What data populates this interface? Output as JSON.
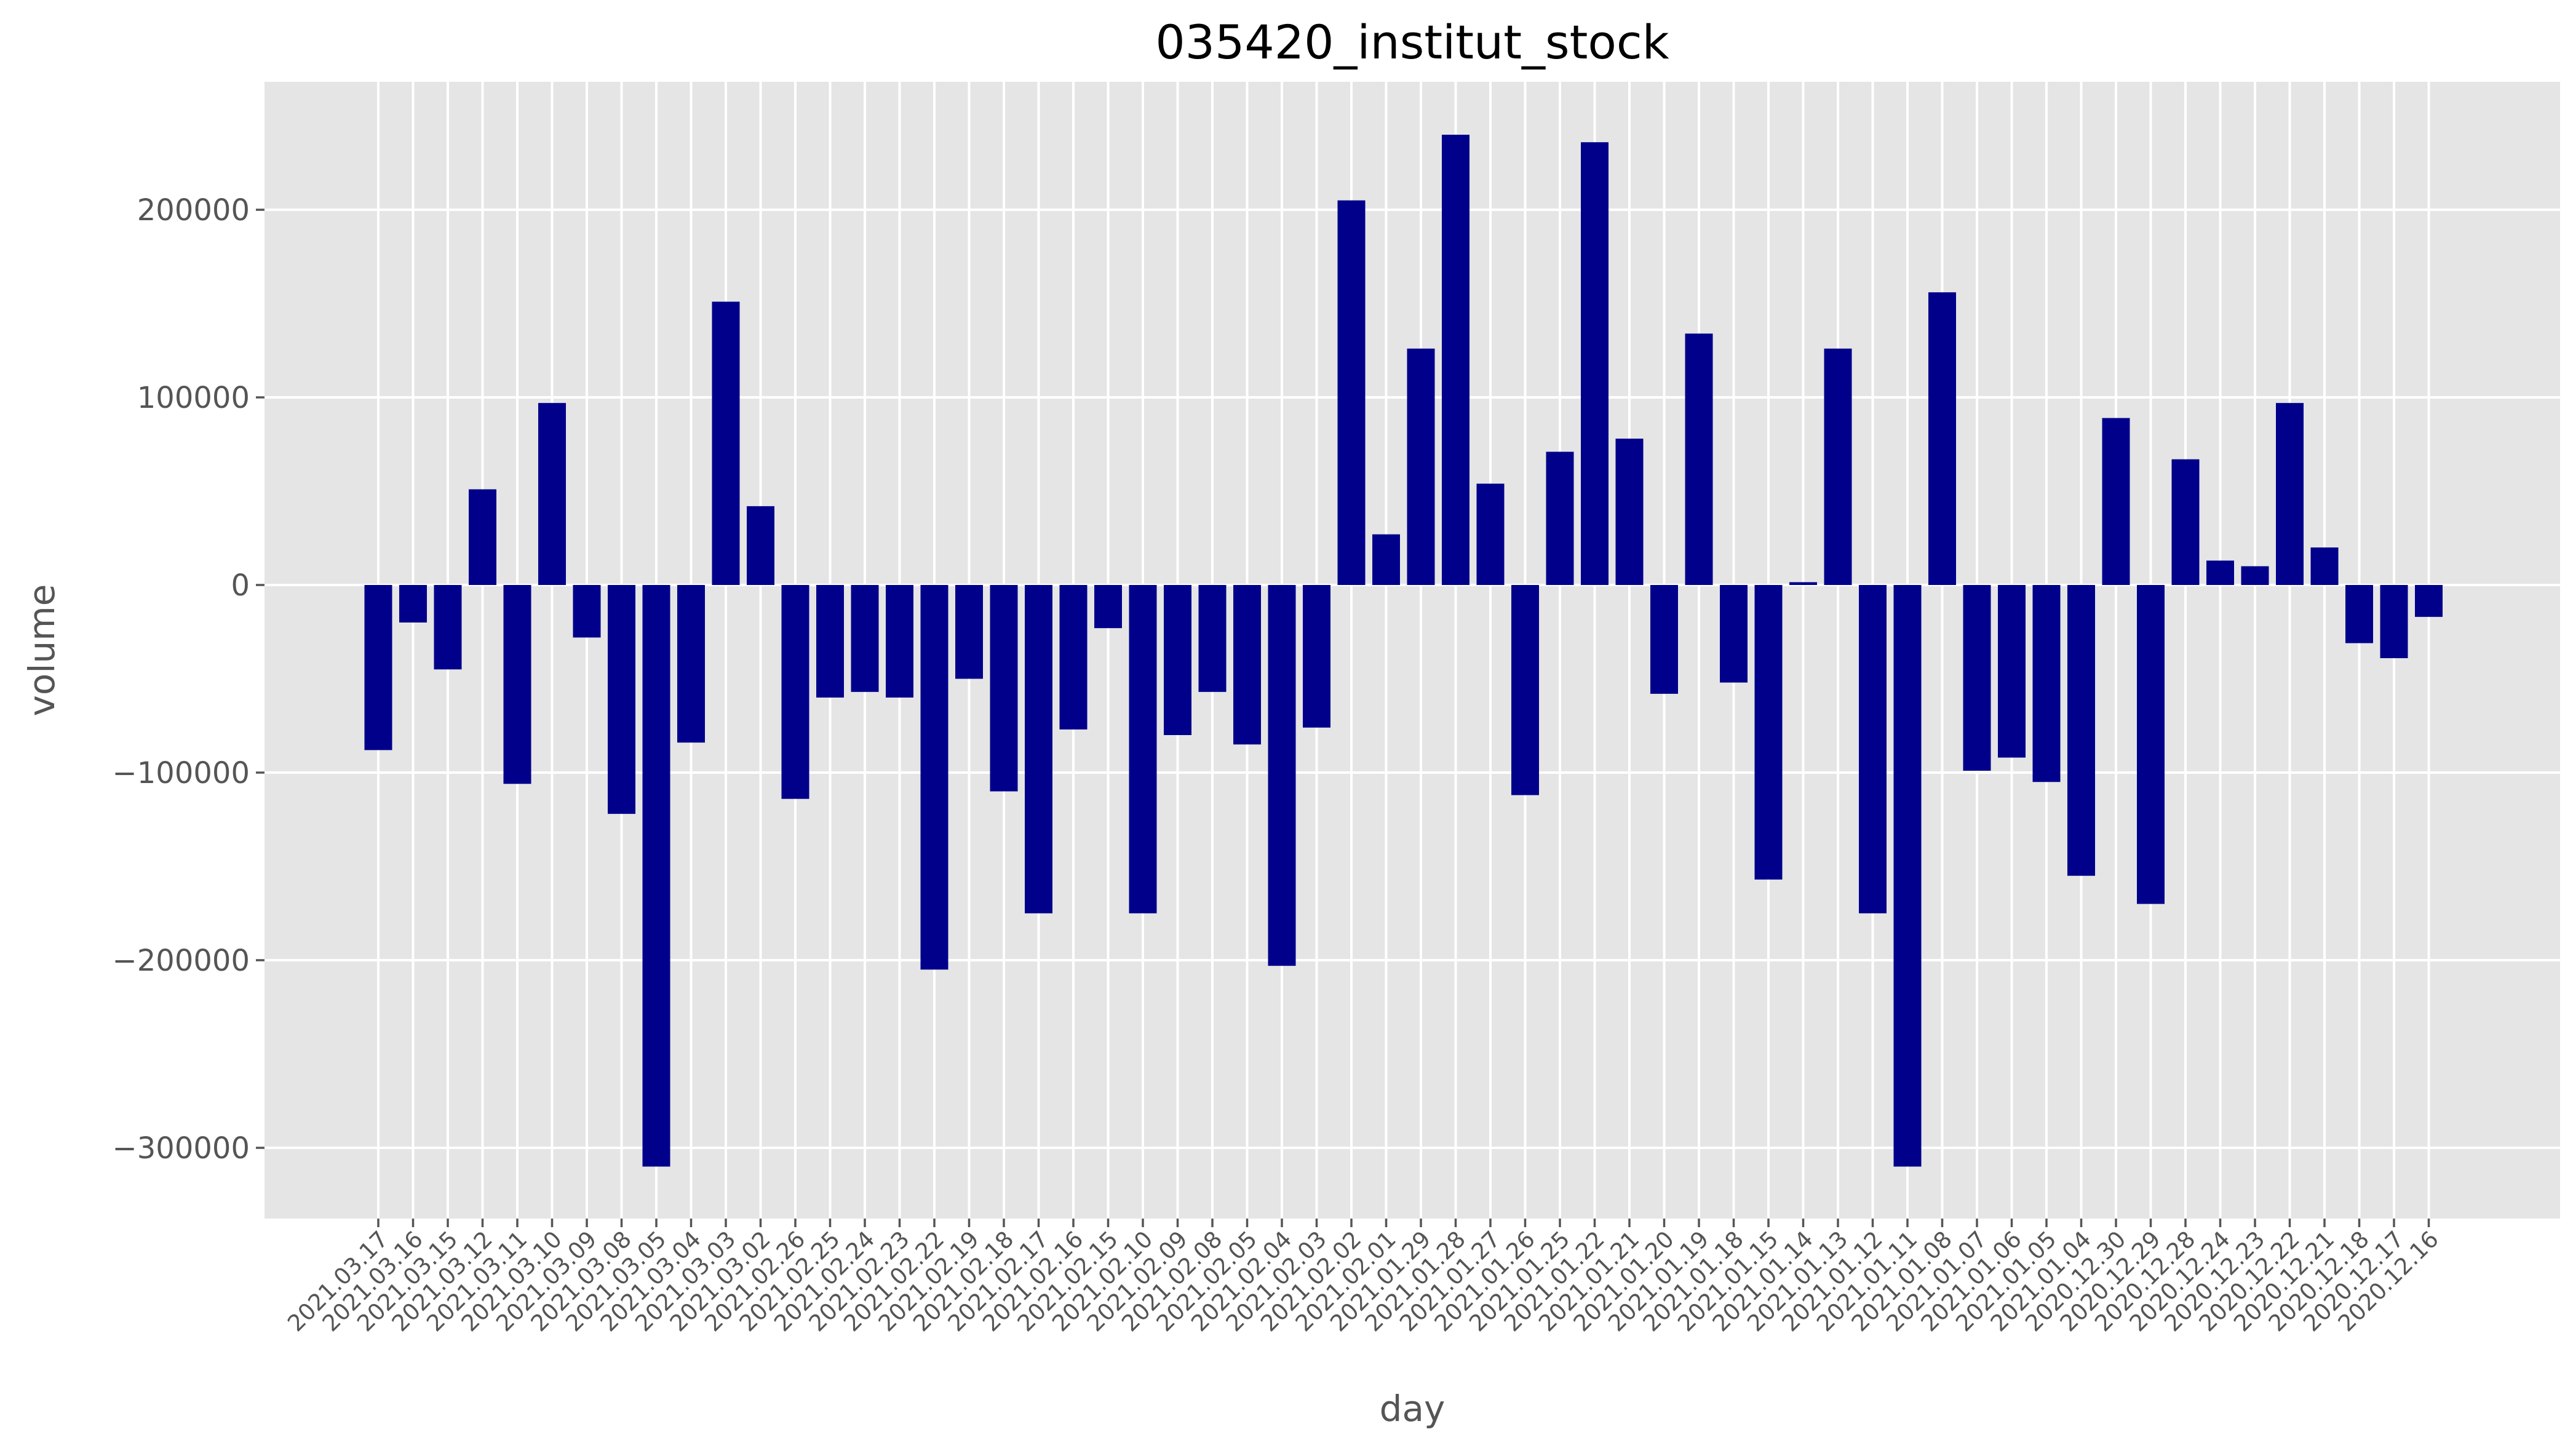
{
  "chart_data": {
    "type": "bar",
    "title": "035420_institut_stock",
    "xlabel": "day",
    "ylabel": "volume",
    "ylim": [
      -337000,
      268000
    ],
    "yticks": [
      -300000,
      -200000,
      -100000,
      0,
      100000,
      200000
    ],
    "ytick_labels": [
      "−300000",
      "−200000",
      "−100000",
      "0",
      "100000",
      "200000"
    ],
    "grid": true,
    "bar_color": "#00008b",
    "background_color": "#e5e5e5",
    "categories": [
      "2021.03.17",
      "2021.03.16",
      "2021.03.15",
      "2021.03.12",
      "2021.03.11",
      "2021.03.10",
      "2021.03.09",
      "2021.03.08",
      "2021.03.05",
      "2021.03.04",
      "2021.03.03",
      "2021.03.02",
      "2021.02.26",
      "2021.02.25",
      "2021.02.24",
      "2021.02.23",
      "2021.02.22",
      "2021.02.19",
      "2021.02.18",
      "2021.02.17",
      "2021.02.16",
      "2021.02.15",
      "2021.02.10",
      "2021.02.09",
      "2021.02.08",
      "2021.02.05",
      "2021.02.04",
      "2021.02.03",
      "2021.02.02",
      "2021.02.01",
      "2021.01.29",
      "2021.01.28",
      "2021.01.27",
      "2021.01.26",
      "2021.01.25",
      "2021.01.22",
      "2021.01.21",
      "2021.01.20",
      "2021.01.19",
      "2021.01.18",
      "2021.01.15",
      "2021.01.14",
      "2021.01.13",
      "2021.01.12",
      "2021.01.11",
      "2021.01.08",
      "2021.01.07",
      "2021.01.06",
      "2021.01.05",
      "2021.01.04",
      "2020.12.30",
      "2020.12.29",
      "2020.12.28",
      "2020.12.24",
      "2020.12.23",
      "2020.12.22",
      "2020.12.21",
      "2020.12.18",
      "2020.12.17",
      "2020.12.16"
    ],
    "values": [
      -88000,
      -20000,
      -45000,
      51000,
      -106000,
      97000,
      -28000,
      -122000,
      -310000,
      -84000,
      151000,
      42000,
      -114000,
      -60000,
      -57000,
      -60000,
      -205000,
      -50000,
      -110000,
      -175000,
      -77000,
      -23000,
      -175000,
      -80000,
      -57000,
      -85000,
      -203000,
      -76000,
      205000,
      27000,
      126000,
      240000,
      54000,
      -112000,
      71000,
      236000,
      78000,
      -58000,
      134000,
      -52000,
      -157000,
      1500,
      126000,
      -175000,
      -310000,
      156000,
      -99000,
      -92000,
      -105000,
      -155000,
      89000,
      -170000,
      67000,
      13000,
      10000,
      97000,
      20000,
      -31000,
      -39000,
      -17000
    ]
  }
}
